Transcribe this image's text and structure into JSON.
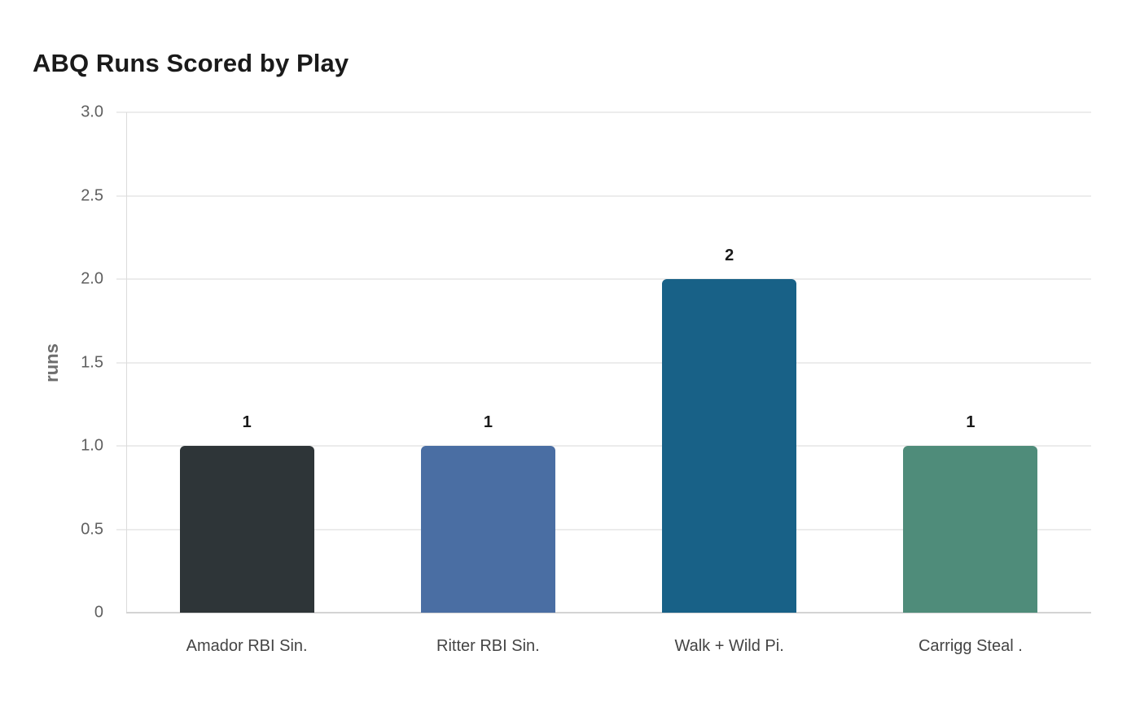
{
  "chart_data": {
    "type": "bar",
    "title": "ABQ Runs Scored by Play",
    "xlabel": "",
    "ylabel": "runs",
    "ylim": [
      0,
      3.0
    ],
    "yticks": [
      "0",
      "0.5",
      "1.0",
      "1.5",
      "2.0",
      "2.5",
      "3.0"
    ],
    "grid": true,
    "legend": null,
    "categories": [
      "Amador RBI Sin.",
      "Ritter RBI Sin.",
      "Walk + Wild Pi.",
      "Carrigg Steal ."
    ],
    "values": [
      1,
      1,
      2,
      1
    ],
    "data_labels": [
      "1",
      "1",
      "2",
      "1"
    ],
    "colors": [
      "#2e3538",
      "#4a6ea3",
      "#186187",
      "#4f8c7a"
    ]
  }
}
